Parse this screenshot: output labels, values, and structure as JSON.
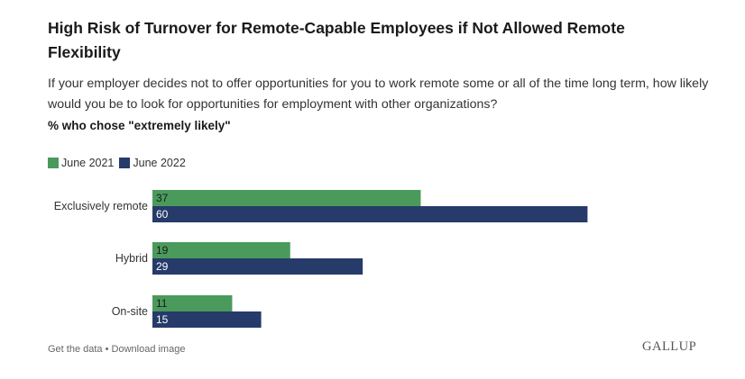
{
  "title": "High Risk of Turnover for Remote-Capable Employees if Not Allowed Remote Flexibility",
  "subtitle": "If your employer decides not to offer opportunities for you to work remote some or all of the time long term, how likely would you be to look for opportunities for employment with other organizations?",
  "note": "% who chose \"extremely likely\"",
  "footer": {
    "get_data": "Get the data",
    "separator": " • ",
    "download": "Download image"
  },
  "logo": "GALLUP",
  "colors": {
    "june2021": "#4a9a5c",
    "june2022": "#263b6a"
  },
  "chart_data": {
    "type": "bar",
    "orientation": "horizontal",
    "categories": [
      "Exclusively remote",
      "Hybrid",
      "On-site"
    ],
    "series": [
      {
        "name": "June 2021",
        "values": [
          37,
          19,
          11
        ]
      },
      {
        "name": "June 2022",
        "values": [
          60,
          29,
          15
        ]
      }
    ],
    "xlim": [
      0,
      100
    ],
    "grid": false,
    "legend_position": "top-left",
    "data_labels": true
  }
}
